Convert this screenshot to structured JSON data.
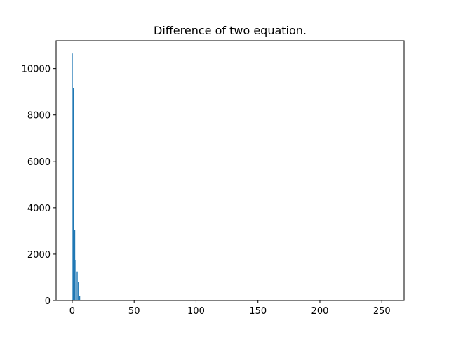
{
  "chart_data": {
    "type": "bar",
    "title": "Difference of two equation.",
    "xlabel": "",
    "ylabel": "",
    "xlim": [
      -13,
      268
    ],
    "ylim": [
      0,
      11200
    ],
    "xticks": [
      0,
      50,
      100,
      150,
      200,
      250
    ],
    "yticks": [
      0,
      2000,
      4000,
      6000,
      8000,
      10000
    ],
    "grid": false,
    "bar_color": "#1f77b4",
    "bar_width": 0.8,
    "x": [
      0,
      1,
      2,
      3,
      4,
      5,
      6
    ],
    "values": [
      10650,
      9150,
      3050,
      1750,
      1250,
      800,
      200
    ]
  }
}
